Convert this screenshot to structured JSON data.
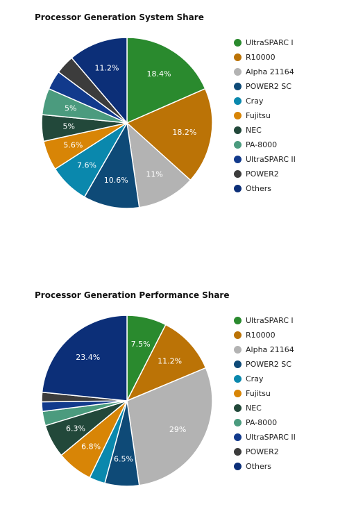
{
  "chart_data": [
    {
      "type": "pie",
      "title": "Processor Generation System Share",
      "labels": [
        "UltraSPARC I",
        "R10000",
        "Alpha 21164",
        "POWER2 SC",
        "Cray",
        "Fujitsu",
        "NEC",
        "PA-8000",
        "UltraSPARC II",
        "POWER2",
        "Others"
      ],
      "values": [
        18.4,
        18.2,
        11,
        10.6,
        7.6,
        5.6,
        5,
        5,
        3.6,
        3.6,
        11.2
      ],
      "data_labels": [
        "18.4%",
        "18.2%",
        "11%",
        "10.6%",
        "7.6%",
        "5.6%",
        "5%",
        "5%",
        "",
        "",
        "11.2%"
      ],
      "legend_position": "right"
    },
    {
      "type": "pie",
      "title": "Processor Generation Performance Share",
      "labels": [
        "UltraSPARC I",
        "R10000",
        "Alpha 21164",
        "POWER2 SC",
        "Cray",
        "Fujitsu",
        "NEC",
        "PA-8000",
        "UltraSPARC II",
        "POWER2",
        "Others"
      ],
      "values": [
        7.5,
        11.2,
        29,
        6.5,
        3,
        6.8,
        6.3,
        2.7,
        1.8,
        1.8,
        23.4
      ],
      "data_labels": [
        "7.5%",
        "11.2%",
        "29%",
        "6.5%",
        "",
        "6.8%",
        "6.3%",
        "",
        "",
        "",
        "23.4%"
      ],
      "legend_position": "right"
    }
  ],
  "colors": [
    "#2a8a2e",
    "#bb7306",
    "#b3b3b3",
    "#0e4a77",
    "#0a88ad",
    "#d88506",
    "#22483a",
    "#4b9b7e",
    "#123a8c",
    "#3c3c3c",
    "#0c2f78"
  ]
}
